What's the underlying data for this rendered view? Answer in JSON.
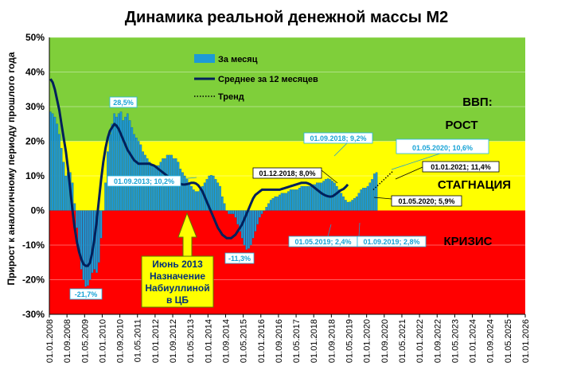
{
  "chart_data": {
    "type": "bar",
    "title": "Динамика реальной денежной массы М2",
    "ylabel": "Прирост к аналогичному периоду прошлого года",
    "ylim": [
      -30,
      50
    ],
    "yticks": [
      "50%",
      "40%",
      "30%",
      "20%",
      "10%",
      "0%",
      "-10%",
      "-20%",
      "-30%"
    ],
    "xticks": [
      "01.01.2008",
      "01.09.2008",
      "01.05.2009",
      "01.01.2010",
      "01.09.2010",
      "01.05.2011",
      "01.01.2012",
      "01.09.2012",
      "01.05.2013",
      "01.01.2014",
      "01.09.2014",
      "01.05.2015",
      "01.01.2016",
      "01.09.2016",
      "01.05.2017",
      "01.01.2018",
      "01.09.2018",
      "01.05.2019",
      "01.01.2020",
      "01.09.2020",
      "01.05.2021",
      "01.01.2022",
      "01.09.2022",
      "01.05.2023",
      "01.01.2024",
      "01.09.2024",
      "01.05.2025",
      "01.01.2026"
    ],
    "x_start": "01.01.2008",
    "x_end": "01.01.2026",
    "zones": [
      {
        "label": "РОСТ",
        "from": 20,
        "to": 50,
        "color": "#7fcf3a"
      },
      {
        "label": "СТАГНАЦИЯ",
        "from": 0,
        "to": 20,
        "color": "#ffff00"
      },
      {
        "label": "КРИЗИС",
        "from": -30,
        "to": 0,
        "color": "#ff0000"
      }
    ],
    "zone_header": "ВВП:",
    "series": [
      {
        "name": "За месяц",
        "type": "bar",
        "color": "#1e9ad6",
        "values": [
          28.5,
          28,
          27,
          25,
          22,
          18,
          14,
          10,
          11,
          11,
          8,
          2,
          -5,
          -12,
          -17,
          -20,
          -22,
          -21.7,
          -20,
          -18,
          -17,
          -18,
          -15,
          -8,
          0,
          8,
          17,
          22,
          25,
          28,
          27,
          28,
          28.5,
          26,
          27,
          28,
          26,
          24,
          22,
          21,
          20,
          19,
          17,
          16,
          15,
          14,
          13,
          13,
          13,
          13,
          14,
          15,
          15,
          16,
          16,
          16,
          15,
          15,
          14,
          12,
          11,
          10,
          9,
          8,
          7,
          6,
          5.5,
          5.5,
          6,
          7,
          8,
          9,
          10,
          10.2,
          10,
          9,
          8,
          7,
          4,
          2,
          0,
          -1,
          -1,
          -1,
          -2,
          -4,
          -6,
          -8,
          -10,
          -11.3,
          -11,
          -10,
          -8,
          -6,
          -4,
          -2,
          -1,
          0,
          1,
          2,
          3,
          3.5,
          4,
          4,
          4.5,
          5,
          5,
          5,
          5.5,
          6,
          6,
          6,
          6,
          6.5,
          7,
          7,
          7,
          7,
          7,
          7.5,
          7.5,
          8,
          8,
          8,
          8.5,
          9,
          9.2,
          9,
          8.5,
          8,
          7,
          6,
          5,
          4,
          3,
          2.4,
          2.5,
          3,
          3.5,
          4,
          5,
          6,
          6.5,
          6.5,
          7,
          8,
          9,
          10.6,
          11
        ]
      },
      {
        "name": "Среднее за 12 месяцев",
        "type": "line",
        "color": "#00205b",
        "values": [
          38,
          37,
          35,
          32,
          29,
          25,
          21,
          17,
          12,
          6,
          0,
          -5,
          -9,
          -12,
          -14,
          -15.5,
          -16,
          -16,
          -15,
          -12,
          -8,
          -3,
          3,
          9,
          14,
          18,
          21,
          23,
          24,
          25,
          24.5,
          23.5,
          22,
          20.5,
          19,
          17.5,
          16.5,
          15.5,
          14.5,
          14,
          13.5,
          13.5,
          13.5,
          13.5,
          13.5,
          13.5,
          13.2,
          13,
          12.5,
          12,
          11.5,
          11,
          10.5,
          10,
          9.5,
          9,
          8.7,
          8.3,
          8,
          7.7,
          7.5,
          7.5,
          7.6,
          7.8,
          8,
          8,
          7.8,
          7.3,
          6.5,
          5.5,
          4,
          2.5,
          1,
          -0.5,
          -2,
          -3.5,
          -5,
          -6,
          -7,
          -7.5,
          -8,
          -8,
          -8,
          -7.5,
          -7,
          -6,
          -5,
          -4,
          -2.5,
          -1,
          0.5,
          2,
          3.5,
          4.5,
          5,
          5.5,
          6,
          6,
          6,
          6,
          6,
          6,
          6,
          6,
          6,
          6.2,
          6.4,
          6.6,
          6.8,
          7,
          7.2,
          7.4,
          7.6,
          7.8,
          8,
          8,
          8,
          7.8,
          7.5,
          7,
          6.5,
          6,
          5.5,
          5,
          4.6,
          4.3,
          4.1,
          4,
          4.1,
          4.5,
          5,
          5.5,
          5.9,
          6.2,
          6.8,
          7.5
        ]
      },
      {
        "name": "Тренд",
        "type": "dotted",
        "color": "#000000",
        "points": [
          [
            12.25,
            6.0
          ],
          [
            13.0,
            11.4
          ]
        ]
      }
    ],
    "annotations": [
      {
        "text": "28,5%",
        "style": "cyan"
      },
      {
        "text": "-21,7%",
        "style": "cyan"
      },
      {
        "text": "01.09.2013; 10,2%",
        "style": "cyan"
      },
      {
        "text": "-11,3%",
        "style": "cyan"
      },
      {
        "text": "01.12.2018; 8,0%",
        "style": "dark"
      },
      {
        "text": "01.09.2018; 9,2%",
        "style": "cyan"
      },
      {
        "text": "01.05.2019; 2,4%",
        "style": "cyan"
      },
      {
        "text": "01.09.2019; 2,8%",
        "style": "cyan"
      },
      {
        "text": "01.05.2020; 10,6%",
        "style": "cyan-large"
      },
      {
        "text": "01.01.2021; 11,4%",
        "style": "dark"
      },
      {
        "text": "01.05.2020; 5,9%",
        "style": "dark"
      }
    ],
    "callout_lines": [
      "Июнь 2013",
      "Назначение",
      "Набиуллиной",
      "в ЦБ"
    ],
    "legend_position": "top-left"
  }
}
